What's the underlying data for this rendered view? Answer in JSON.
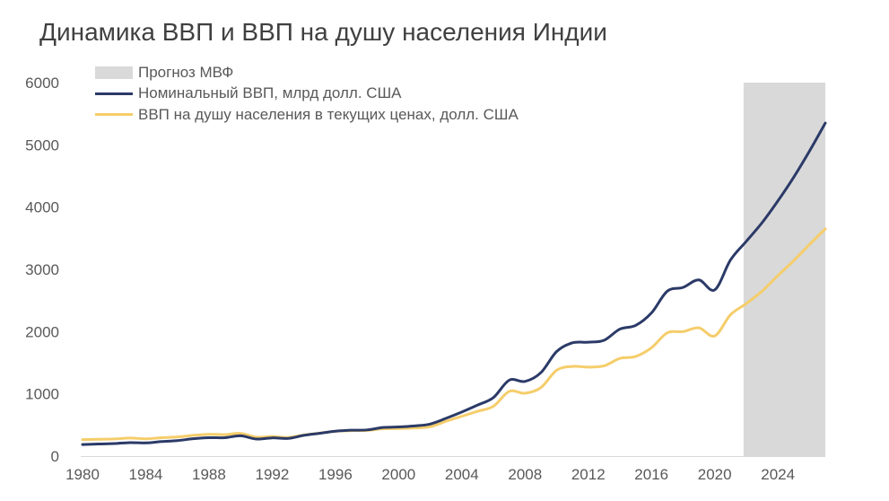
{
  "title": "Динамика ВВП и ВВП на душу населения Индии",
  "chart_data": {
    "type": "line",
    "title": "Динамика ВВП и ВВП на душу населения Индии",
    "xlabel": "",
    "ylabel": "",
    "xlim": [
      1980,
      2027
    ],
    "ylim": [
      0,
      6000
    ],
    "x_ticks": [
      1980,
      1984,
      1988,
      1992,
      1996,
      2000,
      2004,
      2008,
      2012,
      2016,
      2020,
      2024
    ],
    "y_ticks": [
      0,
      1000,
      2000,
      3000,
      4000,
      5000,
      6000
    ],
    "forecast_band": {
      "label": "Прогноз МВФ",
      "from": 2022,
      "to": 2027,
      "color": "#d9d9d9"
    },
    "x": [
      1980,
      1981,
      1982,
      1983,
      1984,
      1985,
      1986,
      1987,
      1988,
      1989,
      1990,
      1991,
      1992,
      1993,
      1994,
      1995,
      1996,
      1997,
      1998,
      1999,
      2000,
      2001,
      2002,
      2003,
      2004,
      2005,
      2006,
      2007,
      2008,
      2009,
      2010,
      2011,
      2012,
      2013,
      2014,
      2015,
      2016,
      2017,
      2018,
      2019,
      2020,
      2021,
      2022,
      2023,
      2024,
      2025,
      2026,
      2027
    ],
    "series": [
      {
        "name": "Номинальный ВВП, млрд долл. США",
        "color": "#2b3a67",
        "values": [
          186,
          195,
          201,
          217,
          212,
          234,
          249,
          279,
          296,
          296,
          327,
          274,
          293,
          284,
          333,
          366,
          400,
          416,
          421,
          459,
          468,
          485,
          515,
          607,
          709,
          820,
          940,
          1220,
          1200,
          1340,
          1680,
          1820,
          1830,
          1860,
          2040,
          2100,
          2300,
          2650,
          2710,
          2830,
          2670,
          3150,
          3450,
          3750,
          4100,
          4480,
          4900,
          5350
        ]
      },
      {
        "name": "ВВП на душу населения в текущих ценах, долл. США",
        "color": "#f5cd6a",
        "values": [
          265,
          270,
          275,
          290,
          278,
          295,
          308,
          333,
          350,
          345,
          365,
          305,
          315,
          300,
          340,
          370,
          398,
          410,
          413,
          438,
          442,
          452,
          472,
          560,
          640,
          720,
          800,
          1040,
          1010,
          1100,
          1380,
          1440,
          1430,
          1450,
          1570,
          1600,
          1740,
          1980,
          2000,
          2060,
          1930,
          2270,
          2450,
          2650,
          2900,
          3140,
          3400,
          3650
        ]
      }
    ]
  }
}
